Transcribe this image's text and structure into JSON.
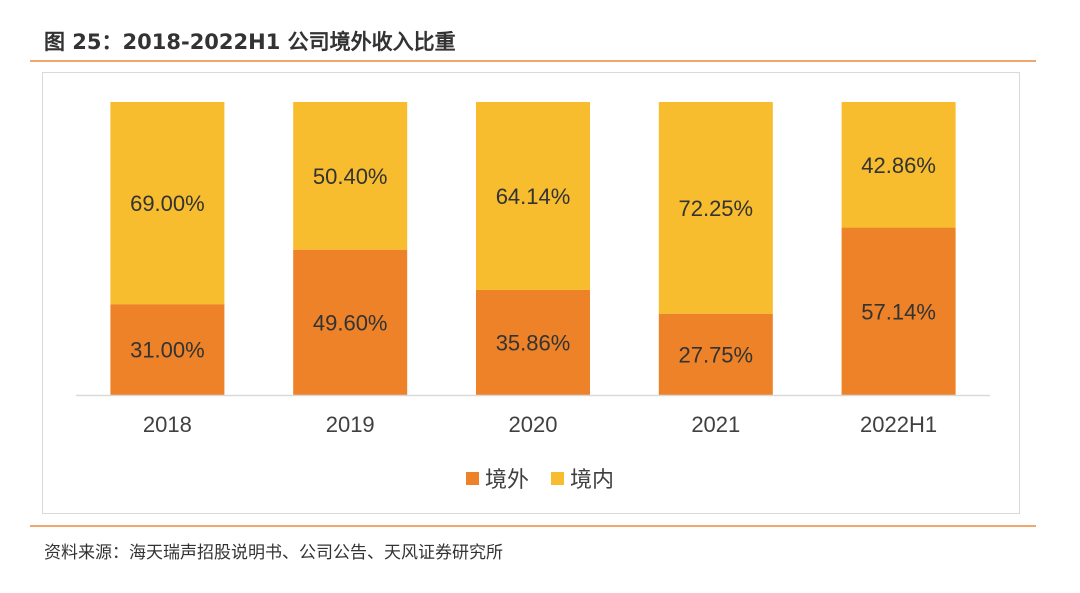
{
  "figure": {
    "title": "图 25：2018-2022H1 公司境外收入比重",
    "source": "资料来源：海天瑞声招股说明书、公司公告、天风证券研究所"
  },
  "colors": {
    "overseas": "#ee8228",
    "domestic": "#f7bd2e",
    "accent_rule": "#f2a66a"
  },
  "chart_data": {
    "type": "bar",
    "stacked": true,
    "percent": true,
    "categories": [
      "2018",
      "2019",
      "2020",
      "2021",
      "2022H1"
    ],
    "series": [
      {
        "name": "境外",
        "values": [
          31.0,
          49.6,
          35.86,
          27.75,
          57.14
        ],
        "labels": [
          "31.00%",
          "49.60%",
          "35.86%",
          "27.75%",
          "57.14%"
        ]
      },
      {
        "name": "境内",
        "values": [
          69.0,
          50.4,
          64.14,
          72.25,
          42.86
        ],
        "labels": [
          "69.00%",
          "50.40%",
          "64.14%",
          "72.25%",
          "42.86%"
        ]
      }
    ],
    "ylim": [
      0,
      100
    ],
    "grid": false,
    "legend": "bottom"
  }
}
